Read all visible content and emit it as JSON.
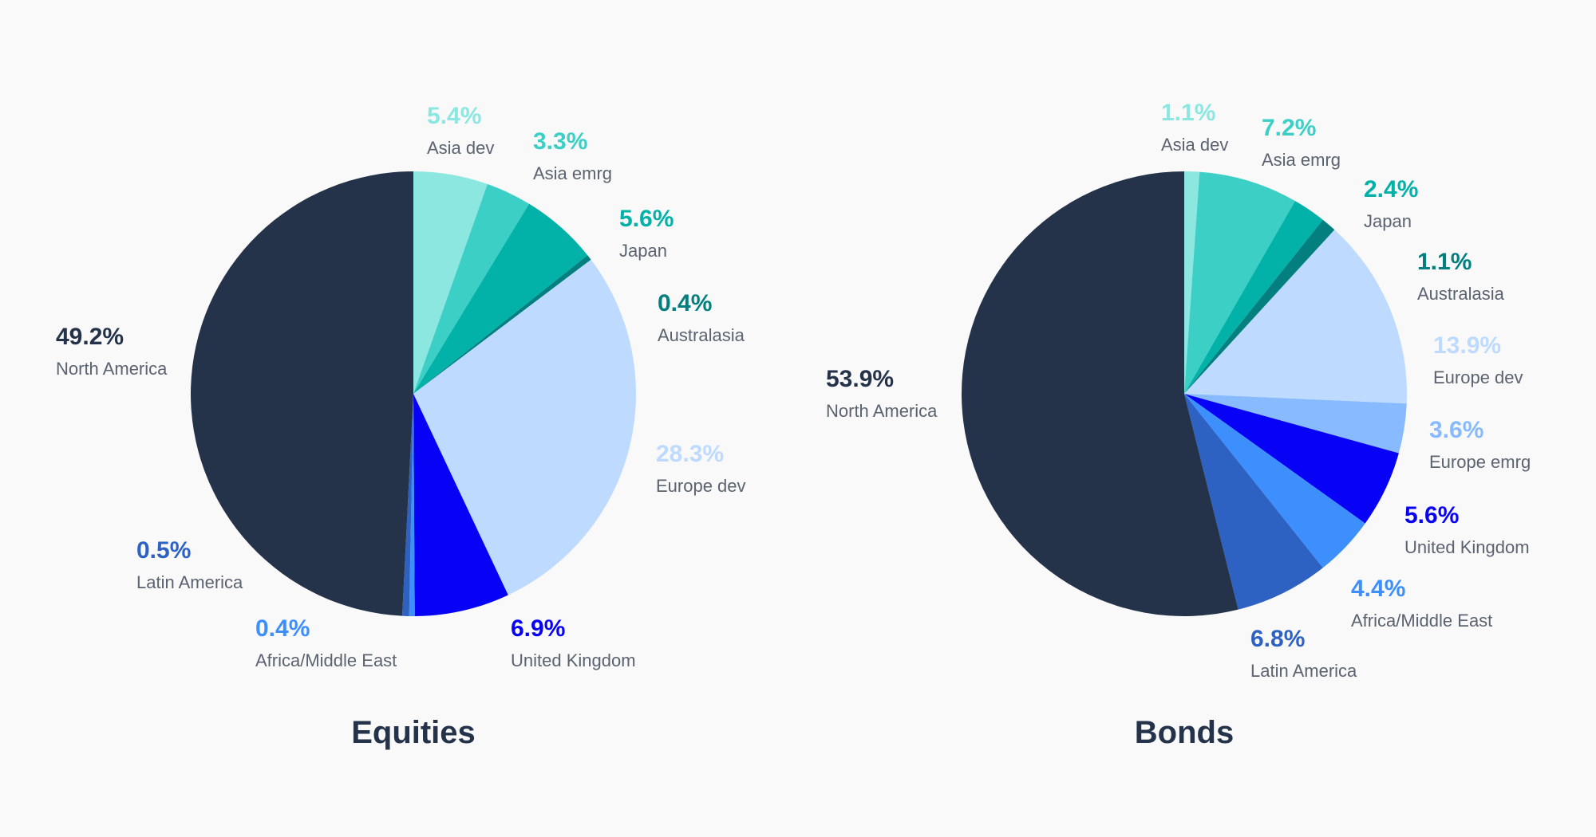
{
  "chart_data": [
    {
      "type": "pie",
      "title": "Equities",
      "unit": "%",
      "slices": [
        {
          "label": "Asia dev",
          "value": 5.4,
          "display": "5.4%",
          "color": "#8be7e0"
        },
        {
          "label": "Asia emrg",
          "value": 3.3,
          "display": "3.3%",
          "color": "#3ccfc6"
        },
        {
          "label": "Japan",
          "value": 5.6,
          "display": "5.6%",
          "color": "#02b1a8"
        },
        {
          "label": "Australasia",
          "value": 0.4,
          "display": "0.4%",
          "color": "#037f80"
        },
        {
          "label": "Europe dev",
          "value": 28.3,
          "display": "28.3%",
          "color": "#bedaff"
        },
        {
          "label": "United Kingdom",
          "value": 6.9,
          "display": "6.9%",
          "color": "#0702f6"
        },
        {
          "label": "Africa/Middle East",
          "value": 0.4,
          "display": "0.4%",
          "color": "#3d8ffe"
        },
        {
          "label": "Latin America",
          "value": 0.5,
          "display": "0.5%",
          "color": "#2d62c3"
        },
        {
          "label": "North America",
          "value": 49.2,
          "display": "49.2%",
          "color": "#24324a"
        }
      ]
    },
    {
      "type": "pie",
      "title": "Bonds",
      "unit": "%",
      "slices": [
        {
          "label": "Asia dev",
          "value": 1.1,
          "display": "1.1%",
          "color": "#8be7e0"
        },
        {
          "label": "Asia emrg",
          "value": 7.2,
          "display": "7.2%",
          "color": "#3ccfc6"
        },
        {
          "label": "Japan",
          "value": 2.4,
          "display": "2.4%",
          "color": "#02b1a8"
        },
        {
          "label": "Australasia",
          "value": 1.1,
          "display": "1.1%",
          "color": "#037f80"
        },
        {
          "label": "Europe dev",
          "value": 13.9,
          "display": "13.9%",
          "color": "#bedaff"
        },
        {
          "label": "Europe emrg",
          "value": 3.6,
          "display": "3.6%",
          "color": "#87baff"
        },
        {
          "label": "United Kingdom",
          "value": 5.6,
          "display": "5.6%",
          "color": "#0702f6"
        },
        {
          "label": "Africa/Middle East",
          "value": 4.4,
          "display": "4.4%",
          "color": "#3d8ffe"
        },
        {
          "label": "Latin America",
          "value": 6.8,
          "display": "6.8%",
          "color": "#2d62c3"
        },
        {
          "label": "North America",
          "value": 53.9,
          "display": "53.9%",
          "color": "#24324a"
        }
      ]
    }
  ]
}
